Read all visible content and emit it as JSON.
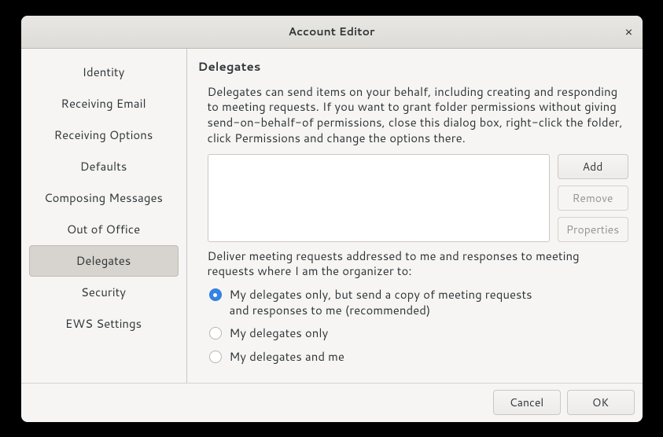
{
  "window": {
    "title": "Account Editor"
  },
  "sidebar": {
    "selected_index": 6,
    "items": [
      {
        "label": "Identity"
      },
      {
        "label": "Receiving Email"
      },
      {
        "label": "Receiving Options"
      },
      {
        "label": "Defaults"
      },
      {
        "label": "Composing Messages"
      },
      {
        "label": "Out of Office"
      },
      {
        "label": "Delegates"
      },
      {
        "label": "Security"
      },
      {
        "label": "EWS Settings"
      }
    ]
  },
  "main": {
    "section_title": "Delegates",
    "description": "Delegates can send items on your behalf, including creating and responding to meeting requests. If you want to grant folder permissions without giving send-on-behalf-of permissions, close this dialog box, right-click the folder, click Permissions and change the options there.",
    "delegates_list": [],
    "buttons": {
      "add": "Add",
      "remove": "Remove",
      "properties": "Properties"
    },
    "deliver_label": "Deliver meeting requests addressed to me and responses to meeting requests where I am the organizer to:",
    "deliver_options": {
      "selected_index": 0,
      "options": [
        {
          "label": "My delegates only, but send a copy of meeting requests\nand responses to me (recommended)"
        },
        {
          "label": "My delegates only"
        },
        {
          "label": "My delegates and me"
        }
      ]
    }
  },
  "footer": {
    "cancel": "Cancel",
    "ok": "OK"
  },
  "colors": {
    "window_bg": "#f6f5f4",
    "titlebar_top": "#e8e7e3",
    "titlebar_bottom": "#dddcd7",
    "border": "#cdc7c2",
    "selected_bg": "#d7d3ce",
    "accent": "#3584e4",
    "text": "#2e3436",
    "disabled_text": "#929595"
  }
}
